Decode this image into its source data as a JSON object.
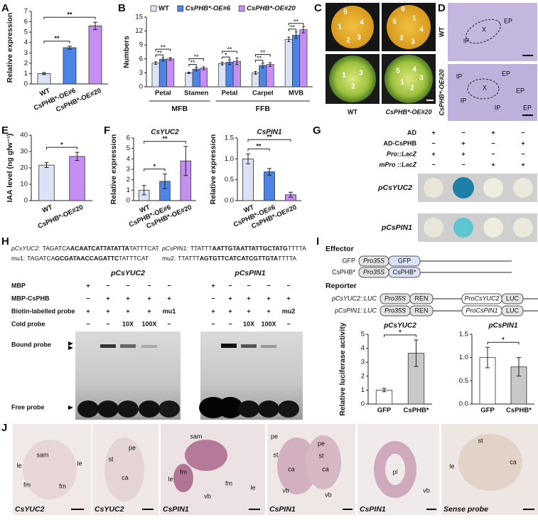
{
  "panel_letters": [
    "A",
    "B",
    "C",
    "D",
    "E",
    "F",
    "G",
    "H",
    "I",
    "J"
  ],
  "chart_data": [
    {
      "type": "bar",
      "ylabel": "Relative expression",
      "categories": [
        "WT",
        "CsPHB*-OE#6",
        "CsPHB*-OE#20"
      ],
      "values": [
        1,
        3.5,
        5.6
      ],
      "errors": [
        0.1,
        0.15,
        0.35
      ],
      "colors": [
        "#dde3f6",
        "#4d85e6",
        "#c48ff0"
      ],
      "ylim": [
        0,
        7
      ],
      "yticks": [
        0,
        1,
        2,
        3,
        4,
        5,
        6,
        7
      ],
      "significance": [
        null,
        "**",
        "**"
      ]
    },
    {
      "type": "grouped_bar",
      "ylabel": "Numbers",
      "categories": [
        "Petal",
        "Stamen",
        "Petal",
        "Carpel",
        "MVB"
      ],
      "group_labels": [
        "MFB",
        null,
        "FFB",
        null,
        null
      ],
      "series": [
        {
          "name": "WT",
          "color": "#dde3f6",
          "values": [
            5.1,
            3.0,
            5.0,
            3.0,
            10.2
          ],
          "errors": [
            0.3,
            0.15,
            0.3,
            0.3,
            0.5
          ]
        },
        {
          "name": "CsPHB*-OE#6",
          "color": "#4d85e6",
          "values": [
            5.9,
            3.8,
            5.3,
            4.6,
            11.1
          ],
          "errors": [
            0.35,
            0.4,
            0.5,
            0.5,
            0.7
          ],
          "significance": [
            "**",
            "**",
            "*",
            "**",
            "**"
          ]
        },
        {
          "name": "CsPHB*-OE#20",
          "color": "#c48ff0",
          "values": [
            6.0,
            4.0,
            5.5,
            4.8,
            12.3
          ],
          "errors": [
            0.3,
            0.3,
            0.7,
            0.4,
            0.7
          ],
          "significance": [
            "**",
            "**",
            "**",
            "**",
            "**"
          ]
        }
      ],
      "ylim": [
        0,
        15
      ],
      "yticks": [
        0,
        3,
        6,
        9,
        12,
        15
      ]
    },
    {
      "type": "bar",
      "ylabel": "IAA level (ng gfw⁻¹)",
      "categories": [
        "WT",
        "CsPHB*-OE#20"
      ],
      "values": [
        21.7,
        27
      ],
      "errors": [
        1.5,
        2.5
      ],
      "colors": [
        "#dde3f6",
        "#c48ff0"
      ],
      "ylim": [
        0,
        40
      ],
      "yticks": [
        0,
        10,
        20,
        30,
        40
      ],
      "significance": [
        null,
        "*"
      ]
    },
    {
      "type": "bar",
      "title": "CsYUC2",
      "ylabel": "Relative expression",
      "categories": [
        "WT",
        "CsPHB*-OE#6",
        "CsPHB*-OE#20"
      ],
      "values": [
        1,
        1.85,
        3.8
      ],
      "errors": [
        0.45,
        0.7,
        1.4
      ],
      "colors": [
        "#dde3f6",
        "#4d85e6",
        "#c48ff0"
      ],
      "ylim": [
        0,
        6
      ],
      "yticks": [
        0,
        1,
        2,
        3,
        4,
        5,
        6
      ],
      "significance": [
        null,
        "*",
        "**"
      ]
    },
    {
      "type": "bar",
      "title": "CsPIN1",
      "ylabel": "Relative expression",
      "categories": [
        "WT",
        "CsPHB*-OE#6",
        "CsPHB*-OE#20"
      ],
      "values": [
        1,
        0.69,
        0.14
      ],
      "errors": [
        0.12,
        0.08,
        0.06
      ],
      "colors": [
        "#dde3f6",
        "#4d85e6",
        "#c48ff0"
      ],
      "ylim": [
        0,
        1.5
      ],
      "yticks": [
        {
          "value": 0,
          "label": "0.0"
        },
        0.5,
        {
          "value": 1,
          "label": "1.0"
        },
        1.5
      ],
      "significance": [
        null,
        "**",
        "**"
      ]
    },
    {
      "type": "bar",
      "title": "pCsYUC2",
      "ylabel": "Relative luciferase activity",
      "categories": [
        "GFP",
        "CsPHB*"
      ],
      "values": [
        1,
        3.65
      ],
      "errors": [
        0.12,
        0.95
      ],
      "colors": [
        "#ffffff",
        "#c8c8c8"
      ],
      "ylim": [
        0,
        5
      ],
      "yticks": [
        0,
        1,
        2,
        3,
        4,
        5
      ],
      "significance": [
        null,
        "*"
      ]
    },
    {
      "type": "bar",
      "title": "pCsPIN1",
      "categories": [
        "GFP",
        "CsPHB*"
      ],
      "values": [
        1,
        0.8
      ],
      "errors": [
        0.22,
        0.2
      ],
      "colors": [
        "#ffffff",
        "#c8c8c8"
      ],
      "ylim": [
        0,
        1.5
      ],
      "yticks": [
        {
          "value": 0,
          "label": "0.0"
        },
        0.5,
        {
          "value": 1,
          "label": "1.0"
        },
        1.5
      ],
      "significance": [
        null,
        "*"
      ]
    }
  ],
  "C": {
    "genotypes": [
      "WT",
      "CsPHB*-OE#20"
    ],
    "wt_petals": [
      "5",
      "1",
      "4",
      "3",
      "2"
    ],
    "oe_petals": [
      "6",
      "5",
      "1",
      "4",
      "3",
      "2"
    ],
    "wt_carpels": [
      "1",
      "3",
      "2"
    ],
    "oe_carpels": [
      "5",
      "4",
      "1",
      "2",
      "3"
    ]
  },
  "D": {
    "genotypes": [
      "WT",
      "CsPHB*-OE#20"
    ],
    "wt_labels": [
      "EP",
      "IP",
      "X"
    ],
    "oe_labels": [
      "IP",
      "X",
      "EP",
      "EP",
      "IP",
      "IP",
      "EP"
    ]
  },
  "G": {
    "rows": [
      {
        "label": "AD",
        "signs": [
          "+",
          "−",
          "+",
          "−"
        ]
      },
      {
        "label": "AD-CsPHB",
        "signs": [
          "−",
          "+",
          "−",
          "+"
        ]
      },
      {
        "label": "Pro::LacZ",
        "signs": [
          "+",
          "+",
          "−",
          "−"
        ]
      },
      {
        "label": "mPro ::LacZ",
        "signs": [
          "−",
          "−",
          "+",
          "+"
        ]
      }
    ],
    "probes": [
      "pCsYUC2",
      "pCsPIN1"
    ]
  },
  "H": {
    "sequences": [
      {
        "label": "pCsYUC2:",
        "pre": "TAGATCA",
        "core": "ACAATCATTATATTA",
        "post": "TATTTCAT"
      },
      {
        "label": "mu1:",
        "pre": "TAGATCA",
        "core": "GCGATAACCAGATTC",
        "post": "TATTTCAT"
      },
      {
        "label": "pCsPIN1:",
        "pre": "TTATTT",
        "core": "AATTGTAATTATTGCTATG",
        "post": "TTTTA"
      },
      {
        "label": "mu2:",
        "pre": "TTATTT",
        "core": "AGTGTTCATCATCGTTGTA",
        "post": "TTTTA"
      }
    ],
    "headers": [
      "pCsYUC2",
      "pCsPIN1"
    ],
    "rows": [
      {
        "label": "MBP",
        "yuc2": [
          "+",
          "−",
          "−",
          "−",
          "−"
        ],
        "pin1": [
          "+",
          "−",
          "−",
          "−",
          "−"
        ]
      },
      {
        "label": "MBP-CsPHB",
        "yuc2": [
          "−",
          "+",
          "+",
          "+",
          "+"
        ],
        "pin1": [
          "−",
          "+",
          "+",
          "+",
          "+"
        ]
      },
      {
        "label": "Biotin-labelled probe",
        "yuc2": [
          "+",
          "+",
          "+",
          "+",
          "mu1"
        ],
        "pin1": [
          "+",
          "+",
          "+",
          "+",
          "mu2"
        ]
      },
      {
        "label": "Cold probe",
        "yuc2": [
          "−",
          "−",
          "10X",
          "100X",
          "−"
        ],
        "pin1": [
          "−",
          "−",
          "10X",
          "100X",
          "−"
        ]
      }
    ],
    "bound_probe": "Bound probe",
    "free_probe": "Free probe"
  },
  "I": {
    "effector_title": "Effector",
    "effectors": [
      {
        "label": "GFP",
        "parts": [
          "Pro35S",
          "GFP"
        ]
      },
      {
        "label": "CsPHB*",
        "parts": [
          "Pro35S",
          "CsPHB*"
        ]
      }
    ],
    "reporter_title": "Reporter",
    "reporters": [
      {
        "label": "pCsYUC2::LUC",
        "parts": [
          "Pro35S",
          "REN",
          "ProCsYUC2",
          "LUC"
        ]
      },
      {
        "label": "pCsPIN1::LUC",
        "parts": [
          "Pro35S",
          "REN",
          "ProCsPIN1",
          "LUC"
        ]
      }
    ]
  },
  "J": {
    "images": [
      {
        "caption": "CsYUC2",
        "labels": [
          "sam",
          "le",
          "le",
          "fm",
          "fm"
        ]
      },
      {
        "caption": "CsYUC2",
        "labels": [
          "pe",
          "st",
          "ca"
        ]
      },
      {
        "caption": "CsPIN1",
        "labels": [
          "sam",
          "fm",
          "le",
          "vb",
          "fm",
          "le"
        ]
      },
      {
        "caption": "CsPIN1",
        "labels": [
          "pe",
          "st",
          "ca",
          "pe",
          "st",
          "ca",
          "vb",
          "vb"
        ]
      },
      {
        "caption": "CsPIN1",
        "labels": [
          "pl",
          "vb"
        ]
      },
      {
        "caption": "Sense probe",
        "labels": [
          "le",
          "st",
          "ca"
        ]
      }
    ]
  }
}
